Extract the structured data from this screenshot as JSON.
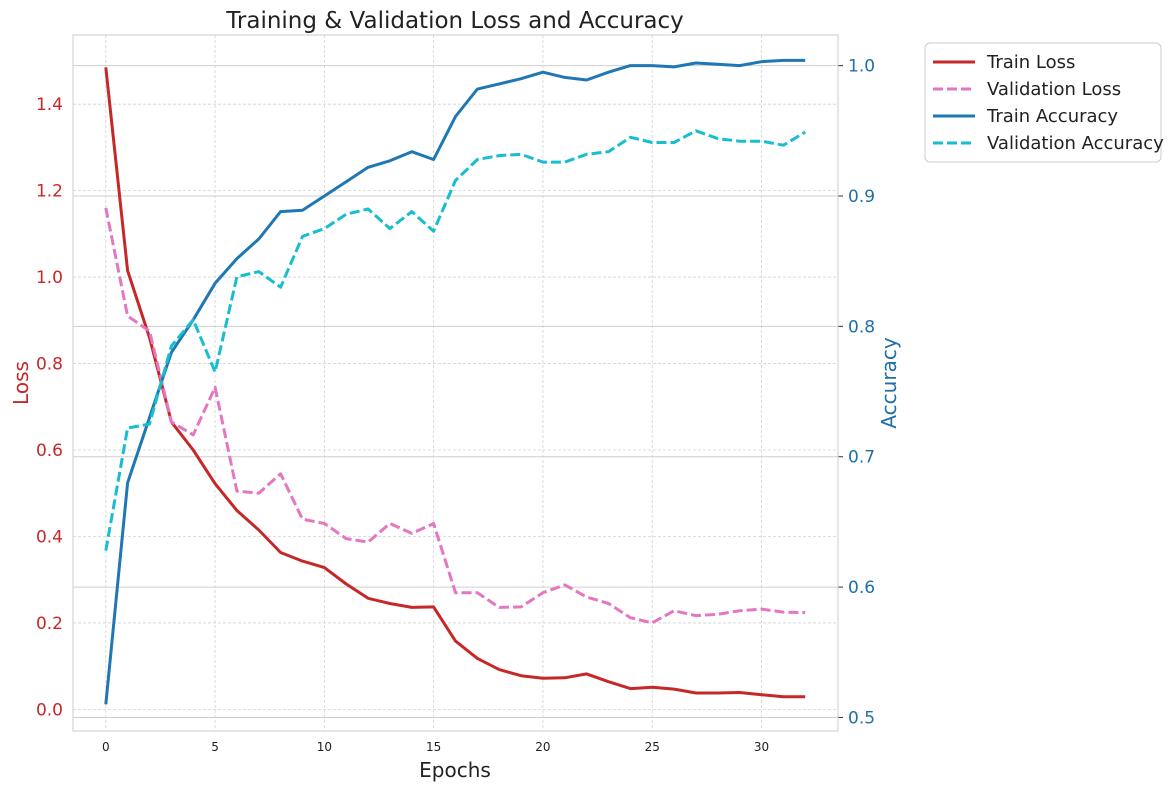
{
  "chart_data": {
    "type": "line",
    "title": "Training & Validation Loss and Accuracy",
    "xlabel": "Epochs",
    "ylabel_left": "Loss",
    "ylabel_right": "Accuracy",
    "xlim": [
      -1.5,
      33.5
    ],
    "ylim_left": [
      -0.05,
      1.56
    ],
    "ylim_right": [
      0.4896,
      1.0235
    ],
    "x_ticks": [
      0,
      5,
      10,
      15,
      20,
      25,
      30
    ],
    "left_ticks": [
      "0.0",
      "0.2",
      "0.4",
      "0.6",
      "0.8",
      "1.0",
      "1.2",
      "1.4"
    ],
    "right_ticks": [
      "0.5",
      "0.6",
      "0.7",
      "0.8",
      "0.9",
      "1.0"
    ],
    "grid": true,
    "legend_position": "outside-top-right",
    "colors": {
      "left_axis": "#c62828",
      "right_axis": "#1f6fa8"
    },
    "x": [
      0,
      1,
      2,
      3,
      4,
      5,
      6,
      7,
      8,
      9,
      10,
      11,
      12,
      13,
      14,
      15,
      16,
      17,
      18,
      19,
      20,
      21,
      22,
      23,
      24,
      25,
      26,
      27,
      28,
      29,
      30,
      31,
      32
    ],
    "series": [
      {
        "name": "Train Loss",
        "axis": "left",
        "color": "#c62828",
        "dash": "solid",
        "values": [
          1.485,
          1.015,
          0.86,
          0.665,
          0.6,
          0.522,
          0.46,
          0.415,
          0.363,
          0.343,
          0.328,
          0.29,
          0.257,
          0.245,
          0.236,
          0.237,
          0.158,
          0.118,
          0.092,
          0.078,
          0.072,
          0.073,
          0.082,
          0.064,
          0.048,
          0.051,
          0.047,
          0.038,
          0.038,
          0.039,
          0.034,
          0.029,
          0.029
        ]
      },
      {
        "name": "Validation Loss",
        "axis": "left",
        "color": "#e377c2",
        "dash": "dashed",
        "values": [
          1.16,
          0.91,
          0.875,
          0.665,
          0.635,
          0.745,
          0.505,
          0.5,
          0.545,
          0.44,
          0.43,
          0.395,
          0.387,
          0.43,
          0.407,
          0.43,
          0.27,
          0.27,
          0.236,
          0.237,
          0.27,
          0.288,
          0.26,
          0.245,
          0.212,
          0.2,
          0.228,
          0.217,
          0.22,
          0.228,
          0.232,
          0.225,
          0.224
        ]
      },
      {
        "name": "Train Accuracy",
        "axis": "right",
        "color": "#1f77b4",
        "dash": "solid",
        "values": [
          0.51,
          0.68,
          0.73,
          0.78,
          0.805,
          0.833,
          0.852,
          0.867,
          0.888,
          0.889,
          0.9,
          0.911,
          0.922,
          0.927,
          0.934,
          0.928,
          0.961,
          0.982,
          0.986,
          0.99,
          0.995,
          0.991,
          0.989,
          0.995,
          1.0,
          1.0,
          0.999,
          1.002,
          1.001,
          1.0,
          1.003,
          1.004,
          1.004
        ]
      },
      {
        "name": "Validation Accuracy",
        "axis": "right",
        "color": "#17becf",
        "dash": "dashed",
        "values": [
          0.628,
          0.722,
          0.725,
          0.785,
          0.805,
          0.765,
          0.838,
          0.842,
          0.83,
          0.869,
          0.875,
          0.886,
          0.89,
          0.875,
          0.888,
          0.873,
          0.912,
          0.928,
          0.931,
          0.932,
          0.926,
          0.926,
          0.932,
          0.934,
          0.945,
          0.941,
          0.941,
          0.95,
          0.944,
          0.942,
          0.942,
          0.939,
          0.949
        ]
      }
    ]
  }
}
